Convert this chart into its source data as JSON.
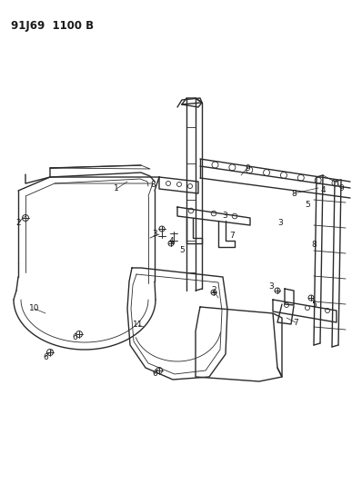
{
  "title_text": "91J69  1100 B",
  "background_color": "#ffffff",
  "line_color": "#2a2a2a",
  "label_color": "#1a1a1a",
  "label_fontsize": 6.5,
  "title_fontsize": 8.5,
  "fig_width": 3.98,
  "fig_height": 5.33,
  "dpi": 100
}
